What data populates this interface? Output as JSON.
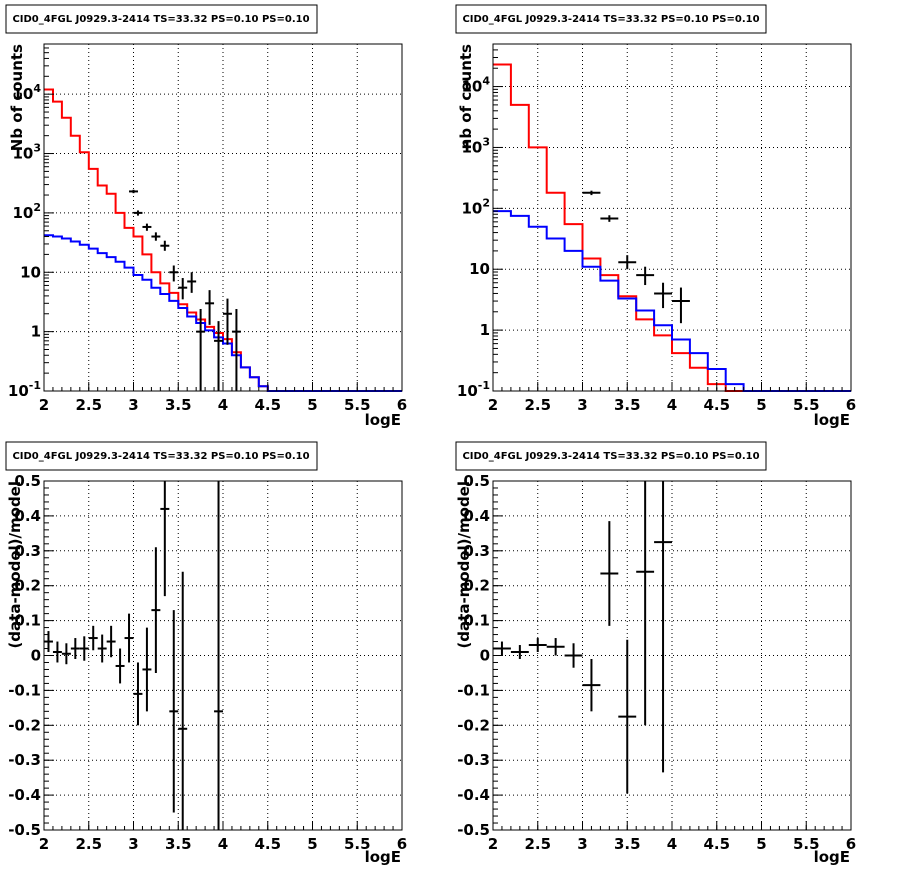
{
  "chart_data": [
    {
      "type": "histogram",
      "title": "CID0_4FGL J0929.3-2414 TS=33.32 PS=0.10 PS=0.10",
      "xlabel": "logE",
      "ylabel": "Nb of counts",
      "xlim": [
        2,
        6
      ],
      "ylim": [
        0.1,
        70000
      ],
      "yscale": "log",
      "grid": true,
      "x_ticks": [
        "2",
        "2.5",
        "3",
        "3.5",
        "4",
        "4.5",
        "5",
        "5.5",
        "6"
      ],
      "y_ticks": [
        "10^-1",
        "1",
        "10",
        "10^2",
        "10^3",
        "10^4"
      ],
      "bin_edges_start": 2.0,
      "bin_width": 0.1,
      "series": [
        {
          "color": "#ff0000",
          "style": "step",
          "values": [
            12000,
            7500,
            4000,
            2000,
            1050,
            550,
            290,
            210,
            100,
            56,
            40,
            20,
            10,
            6.5,
            4.5,
            2.9,
            2.1,
            1.6,
            1.2,
            0.95,
            0.75,
            0.45,
            0.25,
            0.17,
            0.12,
            0.1,
            0.1,
            0.1,
            0.1,
            0.1,
            0.1,
            0.1,
            0.1,
            0.1,
            0.1,
            0.1,
            0.1,
            0.1,
            0.1,
            0.1
          ]
        },
        {
          "color": "#0000ff",
          "style": "step",
          "values": [
            42,
            40,
            37,
            33,
            29,
            25,
            21,
            18,
            15,
            12,
            9,
            7.5,
            5.5,
            4.3,
            3.3,
            2.5,
            1.8,
            1.4,
            1.05,
            0.8,
            0.63,
            0.4,
            0.25,
            0.17,
            0.12,
            0.1,
            0.1,
            0.1,
            0.1,
            0.1,
            0.1,
            0.1,
            0.1,
            0.1,
            0.1,
            0.1,
            0.1,
            0.1,
            0.1,
            0.1
          ]
        },
        {
          "color": "#000000",
          "style": "points",
          "points": [
            {
              "x": 3.0,
              "y": 230,
              "lo": 215,
              "hi": 245
            },
            {
              "x": 3.05,
              "y": 100,
              "lo": 90,
              "hi": 110
            },
            {
              "x": 3.15,
              "y": 58,
              "lo": 50,
              "hi": 66
            },
            {
              "x": 3.25,
              "y": 40,
              "lo": 34,
              "hi": 47
            },
            {
              "x": 3.35,
              "y": 28,
              "lo": 23,
              "hi": 34
            },
            {
              "x": 3.45,
              "y": 10,
              "lo": 7,
              "hi": 13
            },
            {
              "x": 3.55,
              "y": 5.5,
              "lo": 3.5,
              "hi": 8
            },
            {
              "x": 3.65,
              "y": 7,
              "lo": 4.5,
              "hi": 10
            },
            {
              "x": 3.75,
              "y": 1,
              "lo": 0.1,
              "hi": 2.4
            },
            {
              "x": 3.85,
              "y": 3,
              "lo": 1.3,
              "hi": 5
            },
            {
              "x": 3.95,
              "y": 0.7,
              "lo": 0.1,
              "hi": 1.5
            },
            {
              "x": 4.05,
              "y": 2,
              "lo": 0.6,
              "hi": 3.6
            },
            {
              "x": 4.15,
              "y": 1,
              "lo": 0.1,
              "hi": 2.4
            }
          ]
        }
      ]
    },
    {
      "type": "histogram",
      "title": "CID0_4FGL J0929.3-2414 TS=33.32 PS=0.10 PS=0.10",
      "xlabel": "logE",
      "ylabel": "nb of counts",
      "xlim": [
        2,
        6
      ],
      "ylim": [
        0.1,
        50000
      ],
      "yscale": "log",
      "grid": true,
      "x_ticks": [
        "2",
        "2.5",
        "3",
        "3.5",
        "4",
        "4.5",
        "5",
        "5.5",
        "6"
      ],
      "y_ticks": [
        "10^-1",
        "1",
        "10",
        "10^2",
        "10^3",
        "10^4"
      ],
      "bin_edges_start": 2.0,
      "bin_width": 0.2,
      "series": [
        {
          "color": "#ff0000",
          "style": "step",
          "values": [
            23000,
            5000,
            1000,
            180,
            55,
            15,
            8,
            3.6,
            1.5,
            0.82,
            0.42,
            0.24,
            0.13,
            0.1,
            0.1,
            0.1,
            0.1,
            0.1,
            0.1,
            0.1
          ]
        },
        {
          "color": "#0000ff",
          "style": "step",
          "values": [
            90,
            75,
            50,
            32,
            20,
            11,
            6.5,
            3.3,
            2.1,
            1.2,
            0.7,
            0.42,
            0.23,
            0.13,
            0.1,
            0.1,
            0.1,
            0.1,
            0.1,
            0.1
          ]
        },
        {
          "color": "#000000",
          "style": "points",
          "points": [
            {
              "x": 3.1,
              "y": 180,
              "lo": 165,
              "hi": 195
            },
            {
              "x": 3.3,
              "y": 68,
              "lo": 60,
              "hi": 77
            },
            {
              "x": 3.5,
              "y": 13,
              "lo": 10,
              "hi": 17
            },
            {
              "x": 3.7,
              "y": 8,
              "lo": 5.5,
              "hi": 11
            },
            {
              "x": 3.9,
              "y": 4,
              "lo": 2.3,
              "hi": 6
            },
            {
              "x": 4.1,
              "y": 3,
              "lo": 1.3,
              "hi": 5
            }
          ]
        }
      ]
    },
    {
      "type": "scatter",
      "title": "CID0_4FGL J0929.3-2414 TS=33.32 PS=0.10 PS=0.10",
      "xlabel": "logE",
      "ylabel": "(data-model)/model",
      "xlim": [
        2,
        6
      ],
      "ylim": [
        -0.5,
        0.5
      ],
      "grid": true,
      "x_ticks": [
        "2",
        "2.5",
        "3",
        "3.5",
        "4",
        "4.5",
        "5",
        "5.5",
        "6"
      ],
      "y_ticks": [
        "-0.5",
        "-0.4",
        "-0.3",
        "-0.2",
        "-0.1",
        "0",
        "0.1",
        "0.2",
        "0.3",
        "0.4",
        "0.5"
      ],
      "xerr": 0.05,
      "series": [
        {
          "color": "#000000",
          "points": [
            {
              "x": 2.05,
              "y": 0.04,
              "err": 0.03
            },
            {
              "x": 2.15,
              "y": 0.01,
              "err": 0.03
            },
            {
              "x": 2.25,
              "y": 0.005,
              "err": 0.03
            },
            {
              "x": 2.35,
              "y": 0.02,
              "err": 0.03
            },
            {
              "x": 2.45,
              "y": 0.02,
              "err": 0.035
            },
            {
              "x": 2.55,
              "y": 0.05,
              "err": 0.035
            },
            {
              "x": 2.65,
              "y": 0.02,
              "err": 0.04
            },
            {
              "x": 2.75,
              "y": 0.04,
              "err": 0.045
            },
            {
              "x": 2.85,
              "y": -0.03,
              "err": 0.05
            },
            {
              "x": 2.95,
              "y": 0.05,
              "err": 0.07
            },
            {
              "x": 3.05,
              "y": -0.11,
              "err": 0.09
            },
            {
              "x": 3.15,
              "y": -0.04,
              "err": 0.12
            },
            {
              "x": 3.25,
              "y": 0.13,
              "err": 0.18
            },
            {
              "x": 3.35,
              "y": 0.42,
              "err": 0.25
            },
            {
              "x": 3.45,
              "y": -0.16,
              "err": 0.29
            },
            {
              "x": 3.55,
              "y": -0.21,
              "err": 0.45
            },
            {
              "x": 3.95,
              "y": -0.16,
              "err": 1.2
            }
          ]
        }
      ]
    },
    {
      "type": "scatter",
      "title": "CID0_4FGL J0929.3-2414 TS=33.32 PS=0.10 PS=0.10",
      "xlabel": "logE",
      "ylabel": "(data-model)/model",
      "xlim": [
        2,
        6
      ],
      "ylim": [
        -0.5,
        0.5
      ],
      "grid": true,
      "x_ticks": [
        "2",
        "2.5",
        "3",
        "3.5",
        "4",
        "4.5",
        "5",
        "5.5",
        "6"
      ],
      "y_ticks": [
        "-0.5",
        "-0.4",
        "-0.3",
        "-0.2",
        "-0.1",
        "0",
        "0.1",
        "0.2",
        "0.3",
        "0.4",
        "0.5"
      ],
      "xerr": 0.1,
      "series": [
        {
          "color": "#000000",
          "points": [
            {
              "x": 2.1,
              "y": 0.02,
              "err": 0.02
            },
            {
              "x": 2.3,
              "y": 0.01,
              "err": 0.02
            },
            {
              "x": 2.5,
              "y": 0.03,
              "err": 0.02
            },
            {
              "x": 2.7,
              "y": 0.025,
              "err": 0.025
            },
            {
              "x": 2.9,
              "y": 0.0,
              "err": 0.035
            },
            {
              "x": 3.1,
              "y": -0.085,
              "err": 0.075
            },
            {
              "x": 3.3,
              "y": 0.235,
              "err": 0.15
            },
            {
              "x": 3.5,
              "y": -0.175,
              "err": 0.22
            },
            {
              "x": 3.7,
              "y": 0.24,
              "err": 0.44
            },
            {
              "x": 3.9,
              "y": 0.325,
              "err": 0.66
            }
          ]
        }
      ]
    }
  ]
}
